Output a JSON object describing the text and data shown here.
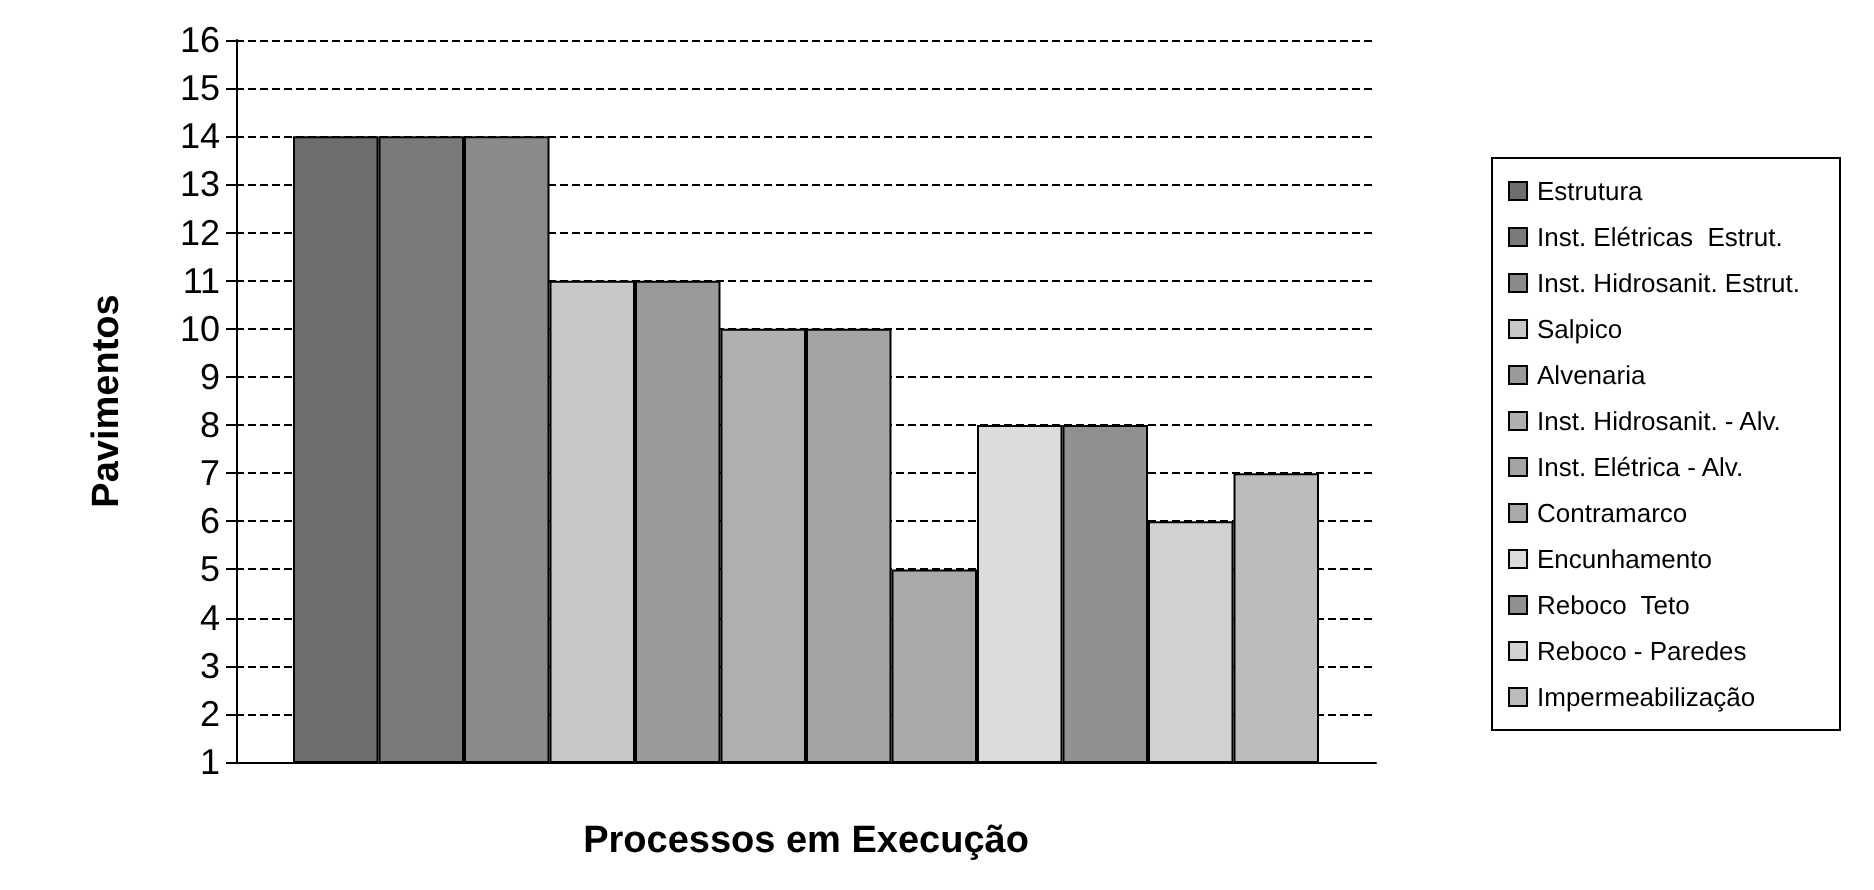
{
  "chart_data": {
    "type": "bar",
    "xlabel": "Processos em Execução",
    "ylabel": "Pavimentos",
    "categories": [
      null
    ],
    "series": [
      {
        "name": "Estrutura",
        "color": "#6e6e6e",
        "values": [
          14
        ]
      },
      {
        "name": "Inst. Elétricas  Estrut.",
        "color": "#7a7a7a",
        "values": [
          14
        ]
      },
      {
        "name": "Inst. Hidrosanit. Estrut.",
        "color": "#8a8a8a",
        "values": [
          14
        ]
      },
      {
        "name": "Salpico",
        "color": "#c8c8c8",
        "values": [
          11
        ]
      },
      {
        "name": "Alvenaria",
        "color": "#9a9a9a",
        "values": [
          11
        ]
      },
      {
        "name": "Inst. Hidrosanit. - Alv.",
        "color": "#b0b0b0",
        "values": [
          10
        ]
      },
      {
        "name": "Inst. Elétrica - Alv.",
        "color": "#a4a4a4",
        "values": [
          10
        ]
      },
      {
        "name": "Contramarco",
        "color": "#aaaaaa",
        "values": [
          5
        ]
      },
      {
        "name": "Encunhamento",
        "color": "#dcdcdc",
        "values": [
          8
        ]
      },
      {
        "name": "Reboco  Teto",
        "color": "#909090",
        "values": [
          8
        ]
      },
      {
        "name": "Reboco - Paredes",
        "color": "#d2d2d2",
        "values": [
          6
        ]
      },
      {
        "name": "Impermeabilização",
        "color": "#bcbcbc",
        "values": [
          7
        ]
      }
    ],
    "ylim": [
      1,
      16
    ],
    "yticks": [
      1,
      2,
      3,
      4,
      5,
      6,
      7,
      8,
      9,
      10,
      11,
      12,
      13,
      14,
      15,
      16
    ],
    "grid": "y",
    "legend": "right"
  }
}
